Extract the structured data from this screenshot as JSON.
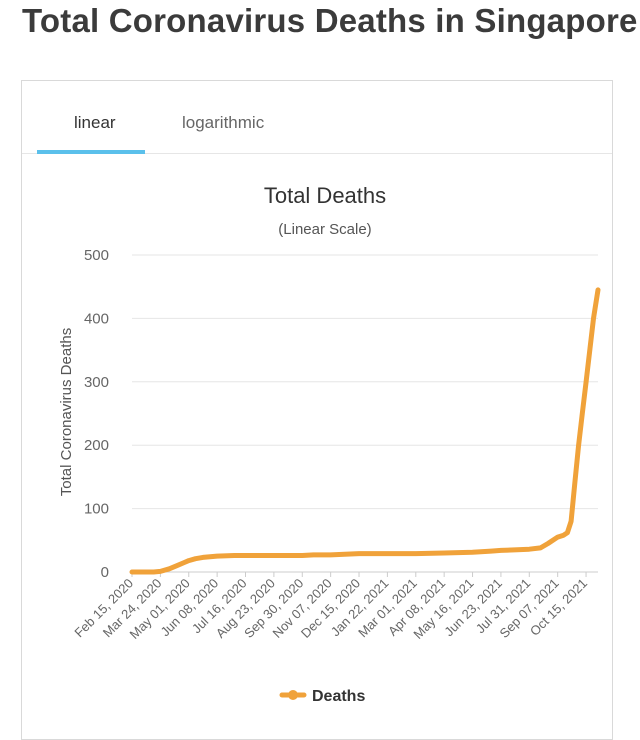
{
  "page": {
    "title": "Total Coronavirus Deaths in Singapore"
  },
  "tabs": [
    {
      "label": "linear",
      "active": true
    },
    {
      "label": "logarithmic",
      "active": false
    }
  ],
  "colors": {
    "series": "#f0a23a",
    "tab_underline": "#5bc0eb",
    "grid": "#e6e6e6"
  },
  "chart_data": {
    "type": "line",
    "title": "Total Deaths",
    "subtitle": "(Linear Scale)",
    "ylabel": "Total Coronavirus Deaths",
    "xlabel": "",
    "ylim": [
      0,
      500
    ],
    "yticks": [
      "0",
      "100",
      "200",
      "300",
      "400",
      "500"
    ],
    "xticks": [
      "Feb 15, 2020",
      "Mar 24, 2020",
      "May 01, 2020",
      "Jun 08, 2020",
      "Jul 16, 2020",
      "Aug 23, 2020",
      "Sep 30, 2020",
      "Nov 07, 2020",
      "Dec 15, 2020",
      "Jan 22, 2021",
      "Mar 01, 2021",
      "Apr 08, 2021",
      "May 16, 2021",
      "Jun 23, 2021",
      "Jul 31, 2021",
      "Sep 07, 2021",
      "Oct 15, 2021"
    ],
    "grid": true,
    "legend": "bottom",
    "series": [
      {
        "name": "Deaths",
        "x": [
          "2020-02-15",
          "2020-03-15",
          "2020-03-24",
          "2020-04-05",
          "2020-04-15",
          "2020-04-25",
          "2020-05-01",
          "2020-05-10",
          "2020-05-20",
          "2020-06-08",
          "2020-07-01",
          "2020-07-16",
          "2020-08-23",
          "2020-09-30",
          "2020-10-15",
          "2020-11-07",
          "2020-12-15",
          "2021-01-22",
          "2021-03-01",
          "2021-04-08",
          "2021-05-16",
          "2021-06-10",
          "2021-06-23",
          "2021-07-15",
          "2021-07-31",
          "2021-08-15",
          "2021-08-25",
          "2021-09-07",
          "2021-09-15",
          "2021-09-20",
          "2021-09-25",
          "2021-09-30",
          "2021-10-05",
          "2021-10-10",
          "2021-10-15",
          "2021-10-20",
          "2021-10-25",
          "2021-10-31"
        ],
        "values": [
          0,
          0,
          1,
          5,
          10,
          15,
          18,
          21,
          23,
          25,
          26,
          26,
          26,
          26,
          27,
          27,
          29,
          29,
          29,
          30,
          31,
          33,
          34,
          35,
          36,
          38,
          45,
          55,
          58,
          62,
          80,
          140,
          200,
          250,
          300,
          350,
          400,
          445
        ]
      }
    ]
  }
}
